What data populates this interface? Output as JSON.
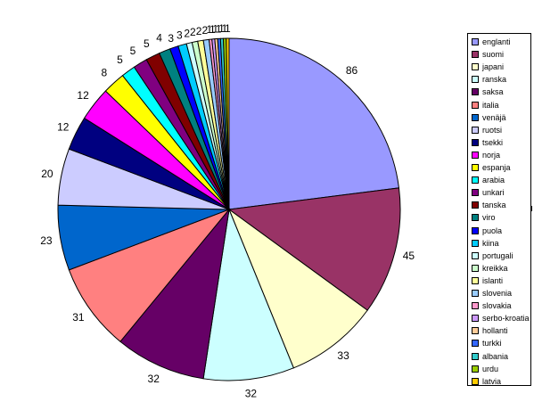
{
  "chart_data": {
    "type": "pie",
    "title": "",
    "start_angle_deg": 0,
    "direction": "clockwise",
    "legend_position": "right",
    "slices": [
      {
        "label": "englanti",
        "value": 86,
        "color": "#9999FF"
      },
      {
        "label": "suomi",
        "value": 45,
        "color": "#993366"
      },
      {
        "label": "japani",
        "value": 33,
        "color": "#FFFFCC"
      },
      {
        "label": "ranska",
        "value": 32,
        "color": "#CCFFFF"
      },
      {
        "label": "saksa",
        "value": 32,
        "color": "#660066"
      },
      {
        "label": "italia",
        "value": 31,
        "color": "#FF8080"
      },
      {
        "label": "venäjä",
        "value": 23,
        "color": "#0066CC"
      },
      {
        "label": "ruotsi",
        "value": 20,
        "color": "#CCCCFF"
      },
      {
        "label": "tsekki",
        "value": 12,
        "color": "#000080"
      },
      {
        "label": "norja",
        "value": 12,
        "color": "#FF00FF"
      },
      {
        "label": "espanja",
        "value": 8,
        "color": "#FFFF00"
      },
      {
        "label": "arabia",
        "value": 5,
        "color": "#00FFFF"
      },
      {
        "label": "unkari",
        "value": 5,
        "color": "#800080"
      },
      {
        "label": "tanska",
        "value": 5,
        "color": "#800000"
      },
      {
        "label": "viro",
        "value": 4,
        "color": "#008080"
      },
      {
        "label": "puola",
        "value": 3,
        "color": "#0000FF"
      },
      {
        "label": "kiina",
        "value": 3,
        "color": "#00CCFF"
      },
      {
        "label": "portugali",
        "value": 2,
        "color": "#CCFFFF"
      },
      {
        "label": "kreikka",
        "value": 2,
        "color": "#CCFFCC"
      },
      {
        "label": "islanti",
        "value": 2,
        "color": "#FFFF99"
      },
      {
        "label": "slovenia",
        "value": 2,
        "color": "#99CCFF"
      },
      {
        "label": "slovakia",
        "value": 1,
        "color": "#FF99CC"
      },
      {
        "label": "serbo-kroatia",
        "value": 1,
        "color": "#CC99FF"
      },
      {
        "label": "hollanti",
        "value": 1,
        "color": "#FFCC99"
      },
      {
        "label": "turkki",
        "value": 1,
        "color": "#3366FF"
      },
      {
        "label": "albania",
        "value": 1,
        "color": "#33CCCC"
      },
      {
        "label": "urdu",
        "value": 1,
        "color": "#99CC00"
      },
      {
        "label": "latvia",
        "value": 1,
        "color": "#FFCC00"
      }
    ]
  }
}
